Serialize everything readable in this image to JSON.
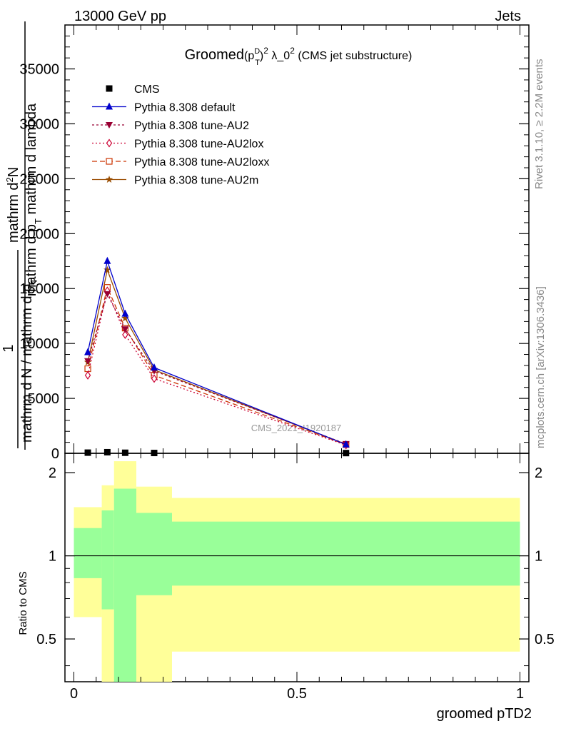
{
  "header": {
    "energy_label": "13000 GeV pp",
    "process_label": "Jets"
  },
  "side_labels": {
    "rivet": "Rivet 3.1.10, ≥ 2.2M events",
    "mcplots": "mcplots.cern.ch [arXiv:1306.3436]"
  },
  "main_plot": {
    "title_main": "Groomed",
    "title_p": "(p",
    "title_sup_d": "D",
    "title_sub_t": "T",
    "title_close": ")",
    "title_sup_2": "2",
    "title_lambda": " λ_0",
    "title_sup_2b": "2",
    "title_rest": " (CMS jet substructure)",
    "ylabel_num1": "mathrm d",
    "ylabel_num1_sup": "2",
    "ylabel_num1_n": "N",
    "ylabel_den1": "mathrm d p",
    "ylabel_den1_sub": "T",
    "ylabel_den1_rest": " mathrm d lambda",
    "ylabel_one": "1",
    "ylabel_den2": "mathrm d N / mathrm d p",
    "ylabel_den2_sub": "T",
    "watermark": "CMS_2021_I1920187",
    "yticks": [
      "0",
      "5000",
      "10000",
      "15000",
      "20000",
      "25000",
      "30000",
      "35000"
    ]
  },
  "ratio_plot": {
    "ylabel": "Ratio to CMS",
    "yticks": [
      "0.5",
      "1",
      "2"
    ],
    "xticks": [
      "0",
      "0.5",
      "1"
    ],
    "xlabel": "groomed pTD2"
  },
  "colors": {
    "data": "#000000",
    "default": "#0000cc",
    "au2": "#990033",
    "au2lox": "#cc0033",
    "au2loxx": "#cc3300",
    "au2m": "#994c00",
    "band_inner": "#99ff99",
    "band_outer": "#ffff99"
  },
  "chart_data": [
    {
      "type": "line",
      "xlim": [
        -0.02,
        1.02
      ],
      "ylim": [
        0,
        39000
      ],
      "x": [
        0.03125,
        0.075,
        0.115,
        0.18,
        0.61
      ],
      "series": [
        {
          "name": "CMS",
          "marker": "square",
          "values": [
            60,
            100,
            50,
            30,
            20
          ]
        },
        {
          "name": "Pythia 8.308 default",
          "marker": "triangle-up",
          "values": [
            9200,
            17500,
            12700,
            7800,
            800
          ]
        },
        {
          "name": "Pythia 8.308 tune-AU2",
          "marker": "triangle-down",
          "values": [
            8400,
            14500,
            11300,
            7500,
            850
          ]
        },
        {
          "name": "Pythia 8.308 tune-AU2lox",
          "marker": "diamond",
          "values": [
            7100,
            14800,
            10800,
            6800,
            750
          ]
        },
        {
          "name": "Pythia 8.308 tune-AU2loxx",
          "marker": "square-open",
          "values": [
            7700,
            15100,
            11400,
            7100,
            800
          ]
        },
        {
          "name": "Pythia 8.308 tune-AU2m",
          "marker": "star",
          "values": [
            8300,
            16700,
            12300,
            7600,
            820
          ]
        }
      ]
    },
    {
      "type": "area",
      "ylabel": "Ratio to CMS",
      "ylim": [
        0.35,
        2.35
      ],
      "ylog": true,
      "bins": [
        {
          "x0": 0.0,
          "x1": 0.0625,
          "inner": [
            0.83,
            1.26
          ],
          "outer": [
            0.6,
            1.5
          ]
        },
        {
          "x0": 0.0625,
          "x1": 0.09,
          "inner": [
            0.64,
            1.46
          ],
          "outer": [
            0.35,
            1.8
          ]
        },
        {
          "x0": 0.09,
          "x1": 0.14,
          "inner": [
            0.35,
            1.75
          ],
          "outer": [
            0.35,
            2.2
          ]
        },
        {
          "x0": 0.14,
          "x1": 0.22,
          "inner": [
            0.72,
            1.43
          ],
          "outer": [
            0.35,
            1.78
          ]
        },
        {
          "x0": 0.22,
          "x1": 1.0,
          "inner": [
            0.78,
            1.33
          ],
          "outer": [
            0.45,
            1.62
          ]
        }
      ]
    }
  ]
}
